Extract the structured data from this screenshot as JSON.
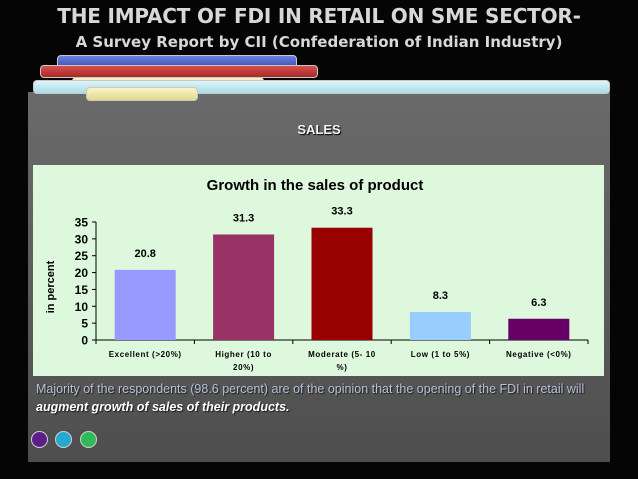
{
  "slide": {
    "title": "THE IMPACT OF FDI IN RETAIL ON SME SECTOR-",
    "subtitle": "A Survey Report by CII (Confederation of Indian Industry)",
    "section": "SALES",
    "caption_plain": "Majority of the respondents (98.6 percent) are of the opinion that the opening of the FDI in retail will ",
    "caption_emphasis": "augment growth of sales of their products.",
    "nav_dot_colors": [
      "#5c1f8a",
      "#25a8cf",
      "#2fba5a"
    ]
  },
  "chart_data": {
    "type": "bar",
    "title": "Growth in the sales of product",
    "xlabel": "",
    "ylabel": "in percent",
    "categories": [
      [
        "Excellent (>20%)"
      ],
      [
        "Higher (10 to",
        "20%)"
      ],
      [
        "Moderate (5- 10",
        "%)"
      ],
      [
        "Low (1 to 5%)"
      ],
      [
        "Negative (<0%)"
      ]
    ],
    "values": [
      20.8,
      31.3,
      33.3,
      8.3,
      6.3
    ],
    "value_labels": [
      "20.8",
      "31.3",
      "33.3",
      "8.3",
      "6.3"
    ],
    "colors": [
      "#9999ff",
      "#993366",
      "#990000",
      "#99ccff",
      "#660066"
    ],
    "ylim": [
      0,
      35
    ],
    "yticks": [
      0,
      5,
      10,
      15,
      20,
      25,
      30,
      35
    ],
    "grid": false,
    "legend": "none"
  }
}
